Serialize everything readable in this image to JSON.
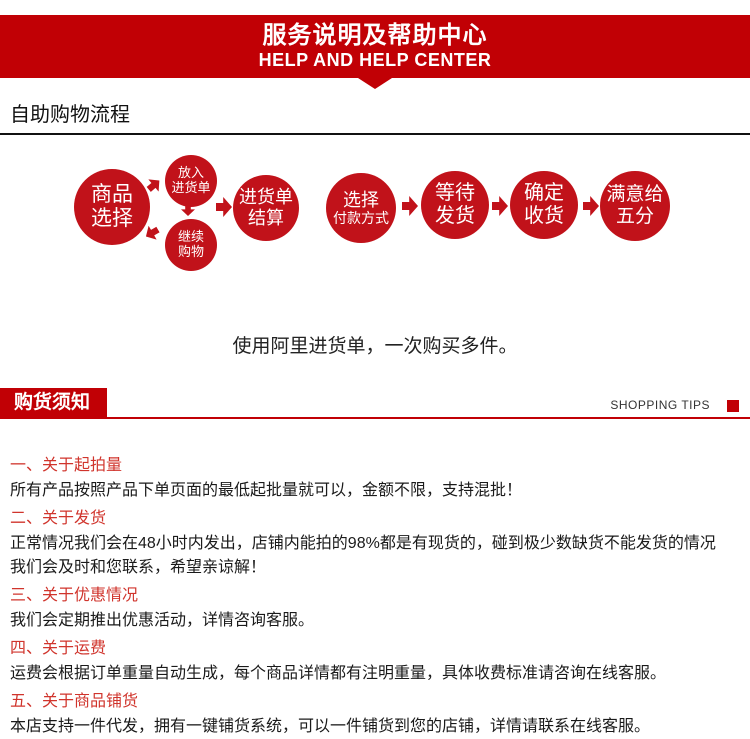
{
  "header": {
    "title": "服务说明及帮助中心",
    "subtitle": "HELP AND HELP CENTER"
  },
  "process": {
    "section_title": "自助购物流程",
    "steps": [
      {
        "line1": "商品",
        "line2": "选择"
      },
      {
        "line1": "进货单",
        "line2": "结算"
      },
      {
        "line1": "选择",
        "line2": "付款方式"
      },
      {
        "line1": "等待",
        "line2": "发货"
      },
      {
        "line1": "确定",
        "line2": "收货"
      },
      {
        "line1": "满意给",
        "line2": "五分"
      }
    ],
    "sub_steps": [
      {
        "line1": "放入",
        "line2": "进货单"
      },
      {
        "line1": "继续",
        "line2": "购物"
      }
    ],
    "caption": "使用阿里进货单，一次购买多件。"
  },
  "tips": {
    "banner": "购货须知",
    "banner_en": "SHOPPING TIPS",
    "sections": [
      {
        "heading": "一、关于起拍量",
        "body": "所有产品按照产品下单页面的最低起批量就可以，金额不限，支持混批！"
      },
      {
        "heading": "二、关于发货",
        "body": "正常情况我们会在48小时内发出，店铺内能拍的98%都是有现货的，碰到极少数缺货不能发货的情况\n我们会及时和您联系，希望亲谅解！"
      },
      {
        "heading": "三、关于优惠情况",
        "body": "我们会定期推出优惠活动，详情咨询客服。"
      },
      {
        "heading": "四、关于运费",
        "body": "运费会根据订单重量自动生成，每个商品详情都有注明重量，具体收费标准请咨询在线客服。"
      },
      {
        "heading": "五、关于商品铺货",
        "body": "本店支持一件代发，拥有一键铺货系统，可以一件铺货到您的店铺，详情请联系在线客服。"
      }
    ]
  },
  "colors": {
    "banner_red": "#c10005",
    "circle_red": "#c1121a",
    "heading_red": "#d0342c"
  }
}
